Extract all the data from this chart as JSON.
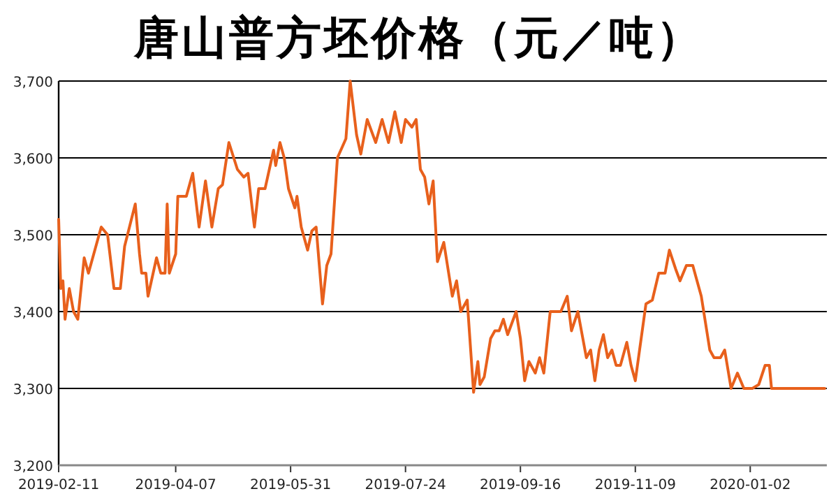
{
  "chart_data": {
    "type": "line",
    "title": "唐山普方坯价格（元／吨）",
    "x": [
      "2019-02-11",
      "2019-02-12",
      "2019-02-13",
      "2019-02-14",
      "2019-02-16",
      "2019-02-18",
      "2019-02-20",
      "2019-02-23",
      "2019-02-25",
      "2019-03-03",
      "2019-03-06",
      "2019-03-09",
      "2019-03-12",
      "2019-03-14",
      "2019-03-19",
      "2019-03-21",
      "2019-03-22",
      "2019-03-24",
      "2019-03-25",
      "2019-03-29",
      "2019-03-31",
      "2019-04-02",
      "2019-04-03",
      "2019-04-04",
      "2019-04-07",
      "2019-04-08",
      "2019-04-12",
      "2019-04-15",
      "2019-04-18",
      "2019-04-21",
      "2019-04-24",
      "2019-04-27",
      "2019-04-29",
      "2019-05-02",
      "2019-05-06",
      "2019-05-09",
      "2019-05-11",
      "2019-05-14",
      "2019-05-16",
      "2019-05-19",
      "2019-05-23",
      "2019-05-24",
      "2019-05-26",
      "2019-05-28",
      "2019-05-30",
      "2019-06-02",
      "2019-06-03",
      "2019-06-05",
      "2019-06-08",
      "2019-06-10",
      "2019-06-12",
      "2019-06-15",
      "2019-06-17",
      "2019-06-19",
      "2019-06-22",
      "2019-06-26",
      "2019-06-28",
      "2019-07-01",
      "2019-07-03",
      "2019-07-06",
      "2019-07-10",
      "2019-07-13",
      "2019-07-16",
      "2019-07-19",
      "2019-07-22",
      "2019-07-24",
      "2019-07-27",
      "2019-07-29",
      "2019-07-31",
      "2019-08-02",
      "2019-08-04",
      "2019-08-06",
      "2019-08-08",
      "2019-08-11",
      "2019-08-15",
      "2019-08-17",
      "2019-08-19",
      "2019-08-22",
      "2019-08-25",
      "2019-08-27",
      "2019-08-28",
      "2019-08-30",
      "2019-09-02",
      "2019-09-04",
      "2019-09-06",
      "2019-09-08",
      "2019-09-10",
      "2019-09-14",
      "2019-09-16",
      "2019-09-18",
      "2019-09-20",
      "2019-09-23",
      "2019-09-25",
      "2019-09-27",
      "2019-09-30",
      "2019-10-05",
      "2019-10-08",
      "2019-10-10",
      "2019-10-13",
      "2019-10-15",
      "2019-10-17",
      "2019-10-19",
      "2019-10-21",
      "2019-10-23",
      "2019-10-25",
      "2019-10-27",
      "2019-10-29",
      "2019-10-31",
      "2019-11-02",
      "2019-11-05",
      "2019-11-07",
      "2019-11-09",
      "2019-11-14",
      "2019-11-17",
      "2019-11-20",
      "2019-11-23",
      "2019-11-25",
      "2019-11-28",
      "2019-11-30",
      "2019-12-03",
      "2019-12-06",
      "2019-12-08",
      "2019-12-10",
      "2019-12-14",
      "2019-12-16",
      "2019-12-19",
      "2019-12-21",
      "2019-12-24",
      "2019-12-27",
      "2019-12-30",
      "2020-01-03",
      "2020-01-06",
      "2020-01-09",
      "2020-01-11",
      "2020-01-12",
      "2020-02-06"
    ],
    "series": [
      {
        "color": "#e8601c",
        "values": [
          3520,
          3430,
          3440,
          3390,
          3430,
          3400,
          3390,
          3470,
          3450,
          3510,
          3500,
          3430,
          3430,
          3485,
          3540,
          3475,
          3450,
          3450,
          3420,
          3470,
          3450,
          3450,
          3540,
          3450,
          3475,
          3550,
          3550,
          3580,
          3510,
          3570,
          3510,
          3560,
          3565,
          3620,
          3585,
          3575,
          3580,
          3510,
          3560,
          3560,
          3610,
          3590,
          3620,
          3600,
          3560,
          3535,
          3550,
          3510,
          3480,
          3505,
          3510,
          3410,
          3460,
          3475,
          3600,
          3625,
          3700,
          3630,
          3605,
          3650,
          3620,
          3650,
          3620,
          3660,
          3620,
          3650,
          3640,
          3650,
          3585,
          3575,
          3540,
          3570,
          3465,
          3490,
          3420,
          3440,
          3400,
          3415,
          3295,
          3335,
          3305,
          3315,
          3365,
          3375,
          3375,
          3390,
          3370,
          3400,
          3365,
          3310,
          3335,
          3320,
          3340,
          3320,
          3400,
          3400,
          3420,
          3375,
          3400,
          3370,
          3340,
          3350,
          3310,
          3350,
          3370,
          3340,
          3350,
          3330,
          3330,
          3360,
          3330,
          3310,
          3410,
          3415,
          3450,
          3450,
          3480,
          3455,
          3440,
          3460,
          3460,
          3440,
          3420,
          3350,
          3340,
          3340,
          3350,
          3300,
          3320,
          3300,
          3300,
          3305,
          3330,
          3330,
          3300,
          3300
        ]
      }
    ],
    "xlim": [
      "2019-02-11",
      "2020-02-07"
    ],
    "xticks": [
      {
        "value": "2019-02-11",
        "label": "2019-02-11"
      },
      {
        "value": "2019-04-07",
        "label": "2019-04-07"
      },
      {
        "value": "2019-05-31",
        "label": "2019-05-31"
      },
      {
        "value": "2019-07-24",
        "label": "2019-07-24"
      },
      {
        "value": "2019-09-16",
        "label": "2019-09-16"
      },
      {
        "value": "2019-11-09",
        "label": "2019-11-09"
      },
      {
        "value": "2020-01-02",
        "label": "2020-01-02"
      }
    ],
    "ylim": [
      3200,
      3700
    ],
    "yticks": [
      {
        "value": 3200,
        "label": "3,200"
      },
      {
        "value": 3300,
        "label": "3,300"
      },
      {
        "value": 3400,
        "label": "3,400"
      },
      {
        "value": 3500,
        "label": "3,500"
      },
      {
        "value": 3600,
        "label": "3,600"
      },
      {
        "value": 3700,
        "label": "3,700"
      }
    ],
    "grid": "y",
    "marker": "none",
    "line_style": "solid"
  }
}
